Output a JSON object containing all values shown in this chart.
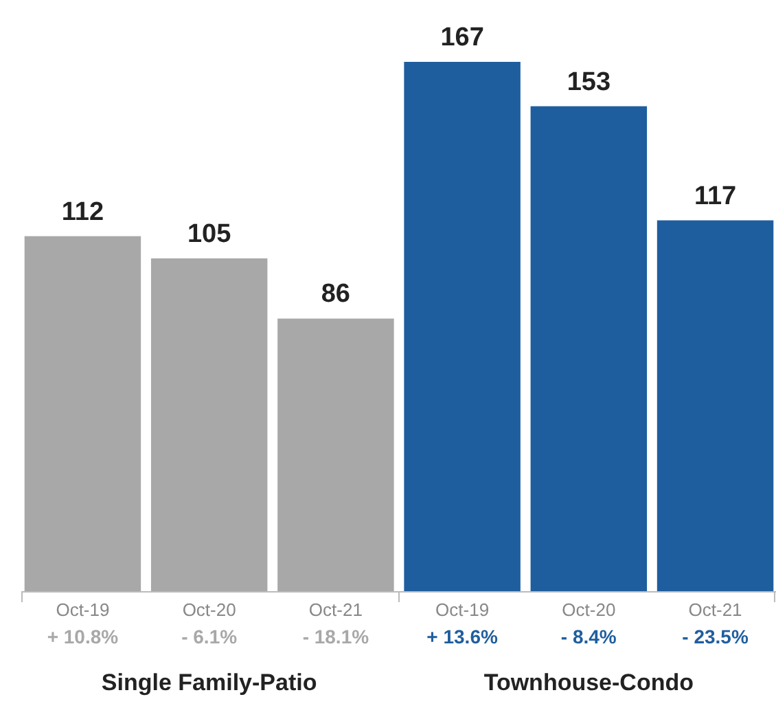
{
  "chart_data": {
    "type": "bar",
    "categories": [
      "Oct-19\n+ 10.8%",
      "Oct-20\n- 6.1%",
      "Oct-21\n- 18.1%",
      "Oct-19\n+ 13.6%",
      "Oct-20\n- 8.4%",
      "Oct-21\n- 23.5%"
    ],
    "values": [
      112,
      105,
      86,
      167,
      153,
      117
    ],
    "colors": [
      "#a8a8a8",
      "#a8a8a8",
      "#a8a8a8",
      "#1f5e9e",
      "#1f5e9e",
      "#1f5e9e"
    ],
    "data_labels": true,
    "annotations": [
      "Single Family-Patio",
      "Townhouse-Condo"
    ]
  }
}
